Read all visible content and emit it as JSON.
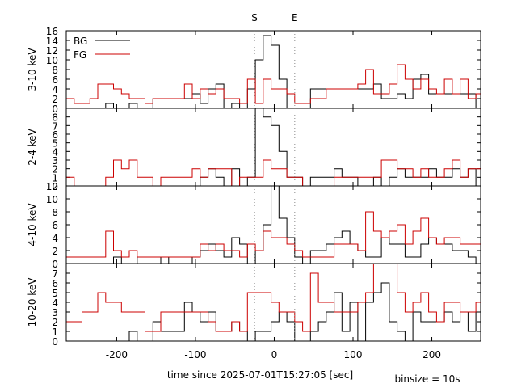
{
  "chart_data": {
    "type": "histogram-step",
    "xlabel": "time since 2025-07-01T15:27:05 [sec]",
    "binsize_label": "binsize = 10s",
    "xlim": [
      -264,
      262
    ],
    "x_ticks": [
      -200,
      -100,
      0,
      100,
      200
    ],
    "markers": [
      {
        "label": "S",
        "x": -25
      },
      {
        "label": "E",
        "x": 26
      }
    ],
    "legend": {
      "position": "top-left",
      "entries": [
        {
          "name": "BG",
          "color": "#000000"
        },
        {
          "name": "FG",
          "color": "#cc0000"
        }
      ]
    },
    "bin_start": -264,
    "bin_width": 10,
    "panels": [
      {
        "ylabel": "3-10 keV",
        "ylim": [
          0,
          16
        ],
        "y_ticks": [
          0,
          2,
          4,
          6,
          8,
          10,
          12,
          14,
          16
        ],
        "series": [
          {
            "name": "BG",
            "color": "#000000",
            "values": [
              0,
              0,
              0,
              0,
              0,
              1,
              0,
              0,
              1,
              0,
              0,
              2,
              2,
              2,
              2,
              2,
              3,
              1,
              4,
              5,
              0,
              1,
              0,
              4,
              10,
              15,
              13,
              6,
              0,
              0,
              0,
              4,
              4,
              4,
              4,
              4,
              4,
              4,
              4,
              5,
              2,
              2,
              3,
              2,
              6,
              7,
              3,
              3,
              3,
              3,
              3,
              3,
              0,
              1,
              0,
              1,
              0,
              0,
              0,
              0,
              0,
              0,
              0,
              0
            ]
          },
          {
            "name": "FG",
            "color": "#cc0000",
            "values": [
              2,
              1,
              1,
              2,
              5,
              5,
              4,
              3,
              2,
              2,
              1,
              2,
              2,
              2,
              2,
              5,
              2,
              4,
              3,
              4,
              2,
              2,
              1,
              6,
              1,
              6,
              4,
              4,
              3,
              1,
              1,
              2,
              2,
              4,
              4,
              4,
              4,
              5,
              8,
              3,
              3,
              5,
              9,
              6,
              4,
              6,
              4,
              3,
              6,
              3,
              6,
              2,
              3,
              3,
              3,
              8,
              3,
              3,
              2,
              1,
              1,
              1,
              1,
              0
            ]
          }
        ]
      },
      {
        "ylabel": "2-4 keV",
        "ylim": [
          0,
          9
        ],
        "y_ticks": [
          0,
          1,
          2,
          3,
          4,
          5,
          6,
          7,
          8
        ],
        "series": [
          {
            "name": "BG",
            "color": "#000000",
            "values": [
              0,
              0,
              0,
              0,
              0,
              0,
              0,
              0,
              0,
              0,
              0,
              0,
              0,
              0,
              0,
              0,
              0,
              1,
              2,
              1,
              0,
              2,
              0,
              1,
              9,
              8,
              7,
              4,
              1,
              1,
              0,
              1,
              1,
              1,
              2,
              1,
              1,
              0,
              0,
              1,
              0,
              1,
              2,
              1,
              1,
              1,
              2,
              1,
              1,
              2,
              1,
              2,
              0,
              0,
              0,
              0,
              0,
              0,
              0,
              0,
              0,
              0,
              0,
              0
            ]
          },
          {
            "name": "FG",
            "color": "#cc0000",
            "values": [
              1,
              0,
              0,
              0,
              0,
              1,
              3,
              2,
              3,
              1,
              1,
              0,
              1,
              1,
              1,
              1,
              2,
              1,
              2,
              2,
              2,
              0,
              1,
              1,
              1,
              3,
              2,
              2,
              1,
              1,
              0,
              0,
              0,
              0,
              1,
              1,
              1,
              1,
              1,
              1,
              3,
              3,
              2,
              2,
              1,
              2,
              1,
              1,
              2,
              3,
              1,
              2,
              2,
              2,
              2,
              2,
              2,
              1,
              1,
              1,
              1,
              1,
              0,
              0
            ]
          }
        ]
      },
      {
        "ylabel": "4-10 keV",
        "ylim": [
          0,
          12
        ],
        "y_ticks": [
          0,
          2,
          4,
          6,
          8,
          10,
          12
        ],
        "series": [
          {
            "name": "BG",
            "color": "#000000",
            "values": [
              0,
              0,
              0,
              0,
              0,
              0,
              1,
              0,
              0,
              1,
              0,
              0,
              1,
              0,
              0,
              0,
              1,
              2,
              3,
              2,
              1,
              4,
              3,
              0,
              2,
              6,
              14,
              7,
              4,
              1,
              0,
              2,
              2,
              3,
              4,
              5,
              3,
              2,
              1,
              1,
              4,
              3,
              3,
              1,
              1,
              3,
              4,
              3,
              3,
              2,
              2,
              1,
              0,
              0,
              0,
              1,
              1,
              0,
              1,
              0,
              0,
              1,
              0,
              0
            ]
          },
          {
            "name": "FG",
            "color": "#cc0000",
            "values": [
              1,
              1,
              1,
              1,
              1,
              5,
              2,
              1,
              2,
              1,
              1,
              1,
              1,
              1,
              1,
              1,
              1,
              3,
              2,
              3,
              2,
              2,
              1,
              3,
              2,
              5,
              4,
              4,
              3,
              2,
              1,
              1,
              1,
              1,
              3,
              3,
              3,
              2,
              8,
              5,
              4,
              5,
              6,
              3,
              5,
              7,
              4,
              3,
              4,
              4,
              3,
              3,
              3,
              3,
              3,
              3,
              2,
              2,
              2,
              1,
              1,
              1,
              0,
              0
            ]
          }
        ]
      },
      {
        "ylabel": "10-20 keV",
        "ylim": [
          0,
          8
        ],
        "y_ticks": [
          0,
          1,
          2,
          3,
          4,
          5,
          6,
          7
        ],
        "series": [
          {
            "name": "BG",
            "color": "#000000",
            "values": [
              0,
              0,
              0,
              0,
              0,
              0,
              0,
              0,
              1,
              0,
              0,
              2,
              1,
              1,
              1,
              4,
              3,
              2,
              3,
              1,
              1,
              2,
              1,
              0,
              1,
              1,
              2,
              3,
              2,
              0,
              0,
              1,
              2,
              3,
              5,
              1,
              4,
              0,
              4,
              5,
              6,
              2,
              1,
              0,
              3,
              2,
              2,
              2,
              3,
              2,
              3,
              1,
              3,
              2,
              1,
              0,
              1,
              1,
              0,
              0,
              0,
              0,
              0,
              0
            ]
          },
          {
            "name": "FG",
            "color": "#cc0000",
            "values": [
              2,
              2,
              3,
              3,
              5,
              4,
              4,
              3,
              3,
              3,
              1,
              1,
              3,
              3,
              3,
              3,
              3,
              3,
              2,
              1,
              1,
              2,
              1,
              5,
              5,
              5,
              4,
              3,
              3,
              2,
              1,
              7,
              4,
              4,
              3,
              3,
              3,
              4,
              5,
              8,
              8,
              8,
              5,
              3,
              4,
              5,
              3,
              2,
              4,
              4,
              3,
              3,
              4,
              3,
              4,
              2,
              2,
              4,
              1,
              0,
              0,
              0,
              0,
              0
            ]
          }
        ]
      }
    ]
  }
}
